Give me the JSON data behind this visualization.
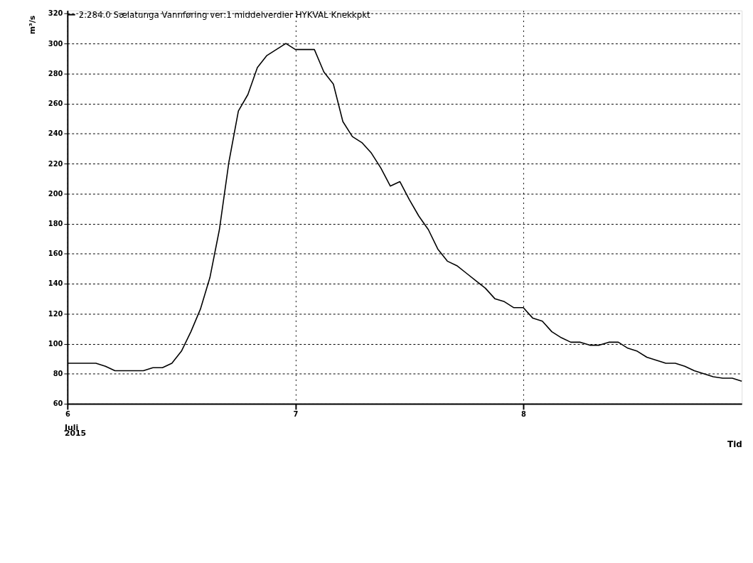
{
  "chart_data": {
    "type": "line",
    "xlabel": "Tid",
    "ylabel": "m³/s",
    "annotations": [
      "Juli",
      "2015"
    ],
    "xlim": [
      "2015-07-06T00:00",
      "2015-07-08T23:00"
    ],
    "xticks": [
      {
        "value": "2015-07-06",
        "label": "6"
      },
      {
        "value": "2015-07-07",
        "label": "7"
      },
      {
        "value": "2015-07-08",
        "label": "8"
      }
    ],
    "ylim": [
      60,
      322
    ],
    "yticks": [
      60,
      80,
      100,
      120,
      140,
      160,
      180,
      200,
      220,
      240,
      260,
      280,
      300,
      320
    ],
    "grid": true,
    "legend": "top left",
    "x": [
      "2015-07-06T00:00",
      "2015-07-06T03:00",
      "2015-07-06T04:00",
      "2015-07-06T05:00",
      "2015-07-06T08:00",
      "2015-07-06T09:00",
      "2015-07-06T10:00",
      "2015-07-06T11:00",
      "2015-07-06T12:00",
      "2015-07-06T13:00",
      "2015-07-06T14:00",
      "2015-07-06T15:00",
      "2015-07-06T16:00",
      "2015-07-06T17:00",
      "2015-07-06T18:00",
      "2015-07-06T19:00",
      "2015-07-06T20:00",
      "2015-07-06T21:00",
      "2015-07-06T23:00",
      "2015-07-07T00:00",
      "2015-07-07T02:00",
      "2015-07-07T03:00",
      "2015-07-07T04:00",
      "2015-07-07T05:00",
      "2015-07-07T06:00",
      "2015-07-07T07:00",
      "2015-07-07T08:00",
      "2015-07-07T09:00",
      "2015-07-07T10:00",
      "2015-07-07T11:00",
      "2015-07-07T12:00",
      "2015-07-07T13:00",
      "2015-07-07T14:00",
      "2015-07-07T15:00",
      "2015-07-07T16:00",
      "2015-07-07T17:00",
      "2015-07-07T18:00",
      "2015-07-07T19:00",
      "2015-07-07T20:00",
      "2015-07-07T21:00",
      "2015-07-07T22:00",
      "2015-07-07T23:00",
      "2015-07-08T00:00",
      "2015-07-08T01:00",
      "2015-07-08T02:00",
      "2015-07-08T03:00",
      "2015-07-08T04:00",
      "2015-07-08T05:00",
      "2015-07-08T06:00",
      "2015-07-08T07:00",
      "2015-07-08T08:00",
      "2015-07-08T09:00",
      "2015-07-08T10:00",
      "2015-07-08T11:00",
      "2015-07-08T12:00",
      "2015-07-08T13:00",
      "2015-07-08T14:00",
      "2015-07-08T15:00",
      "2015-07-08T16:00",
      "2015-07-08T17:00",
      "2015-07-08T18:00",
      "2015-07-08T19:00",
      "2015-07-08T20:00",
      "2015-07-08T21:00",
      "2015-07-08T22:00",
      "2015-07-08T23:00"
    ],
    "series": [
      {
        "name": "2.284.0 Sælatunga Vannføring ver:1 middelverdier HYKVAL Knekkpkt",
        "color": "#000000",
        "values": [
          87,
          87,
          85,
          82,
          82,
          84,
          84,
          87,
          95,
          108,
          123,
          144,
          176,
          221,
          255,
          266,
          284,
          292,
          300,
          296,
          296,
          281,
          273,
          248,
          238,
          234,
          227,
          217,
          205,
          208,
          196,
          185,
          176,
          163,
          155,
          152,
          147,
          142,
          137,
          130,
          128,
          124,
          124,
          117,
          115,
          108,
          104,
          101,
          101,
          99,
          99,
          101,
          101,
          97,
          95,
          91,
          89,
          87,
          87,
          85,
          82,
          80,
          78,
          77,
          77,
          75
        ]
      }
    ]
  }
}
